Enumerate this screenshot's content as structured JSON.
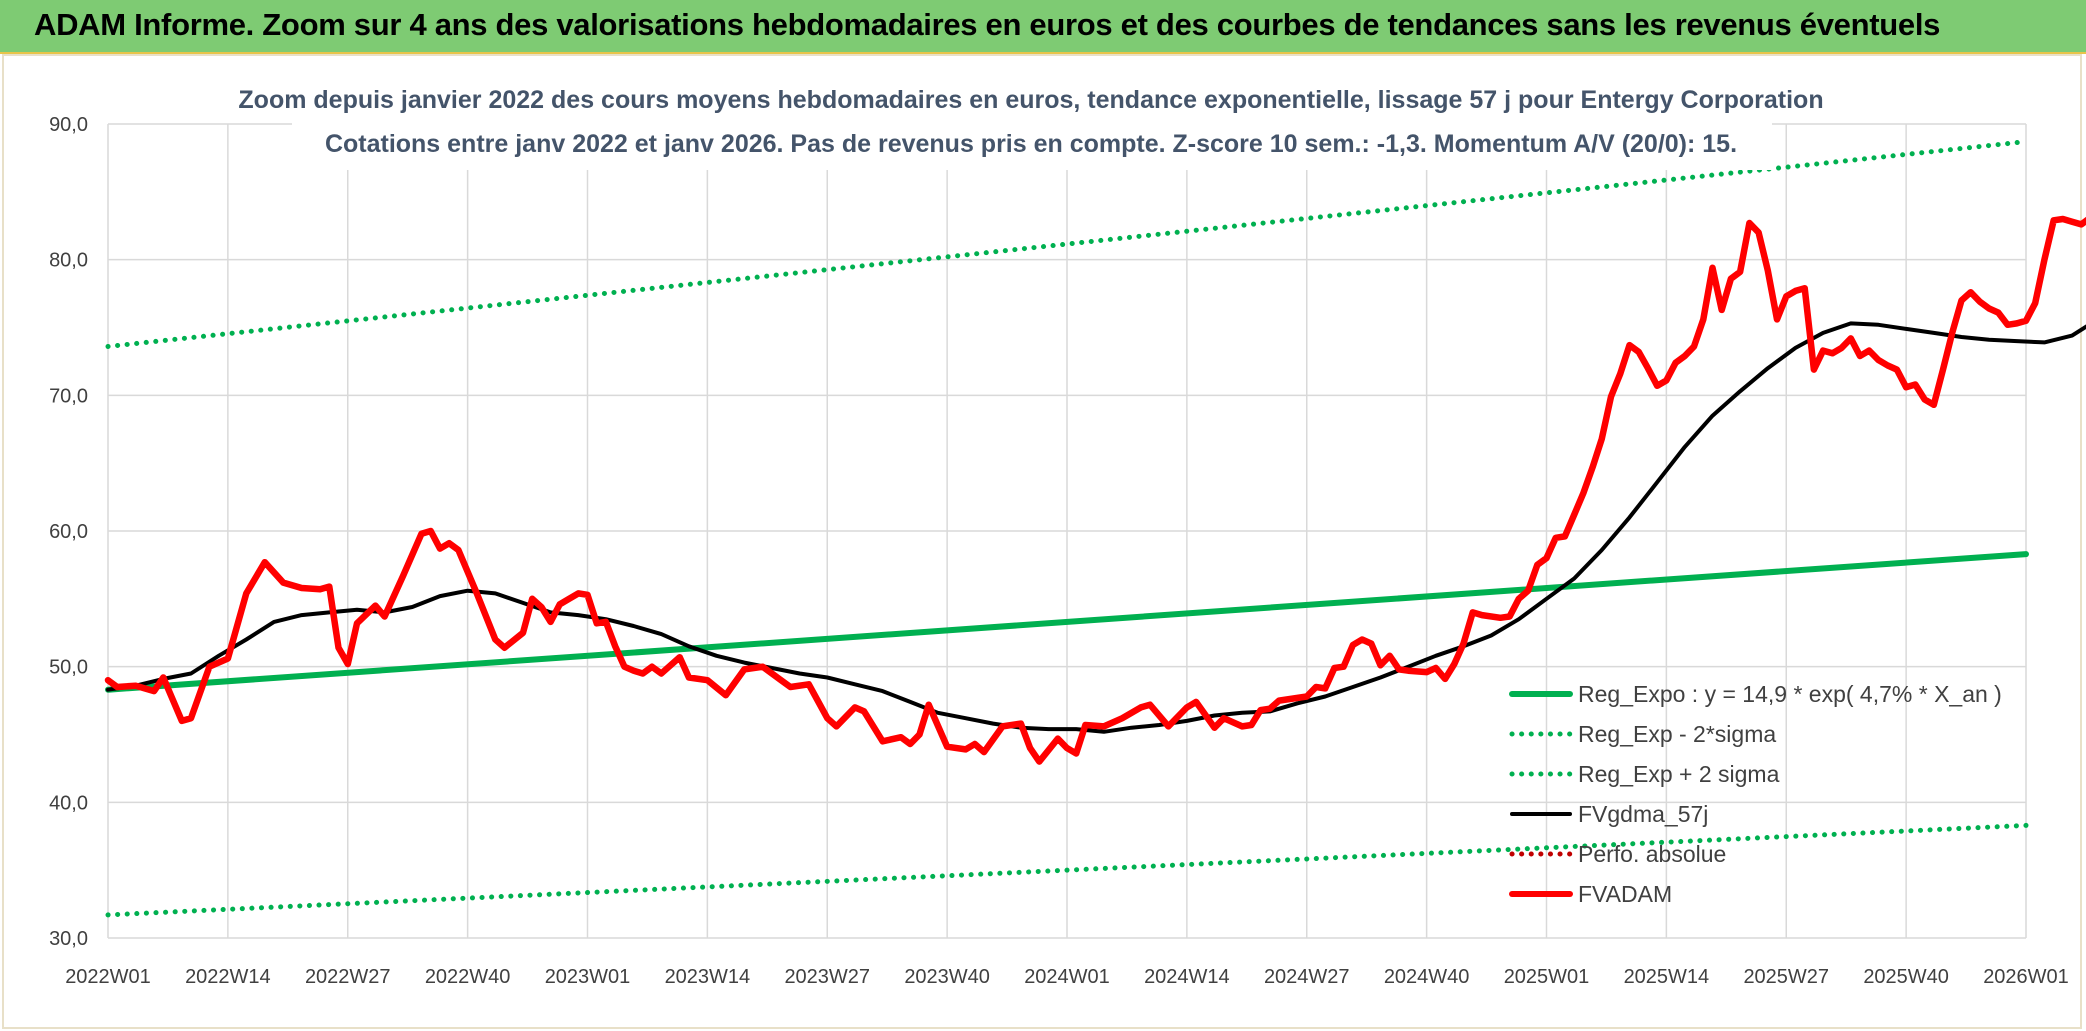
{
  "banner": {
    "title": "ADAM Informe. Zoom sur 4 ans des valorisations hebdomadaires en euros et des courbes de tendances sans les revenus éventuels"
  },
  "colors": {
    "trend": "#00b050",
    "fvgdma": "#000000",
    "fvadam": "#ff0000",
    "perfo": "#c00000"
  },
  "chart_data": {
    "type": "line",
    "title": "Zoom depuis janvier 2022 des cours moyens hebdomadaires en euros, tendance exponentielle, lissage 57 j pour Entergy Corporation",
    "subtitle": "Cotations entre janv 2022 et janv 2026. Pas de revenus pris en compte. Z-score 10 sem.: -1,3. Momentum A/V (20/0): 15.",
    "xlabel": "",
    "ylabel": "",
    "ylim": [
      30,
      90
    ],
    "grid": true,
    "legend_position": "bottom-right",
    "y_ticks": [
      "30,0",
      "40,0",
      "50,0",
      "60,0",
      "70,0",
      "80,0",
      "90,0"
    ],
    "x_ticks": [
      "2022W01",
      "2022W14",
      "2022W27",
      "2022W40",
      "2023W01",
      "2023W14",
      "2023W27",
      "2023W40",
      "2024W01",
      "2024W14",
      "2024W27",
      "2024W40",
      "2025W01",
      "2025W14",
      "2025W27",
      "2025W40",
      "2026W01"
    ],
    "series": [
      {
        "name": "Reg_Expo : y = 14,9 * exp( 4,7% *  X_an )",
        "style": "solid-thick",
        "color": "#00b050",
        "points": [
          [
            0,
            48.3
          ],
          [
            208,
            58.3
          ]
        ]
      },
      {
        "name": "Reg_Exp - 2*sigma",
        "style": "dotted",
        "color": "#00b050",
        "points": [
          [
            0,
            31.7
          ],
          [
            208,
            38.3
          ]
        ]
      },
      {
        "name": "Reg_Exp + 2 sigma",
        "style": "dotted",
        "color": "#00b050",
        "points": [
          [
            0,
            73.6
          ],
          [
            208,
            88.7
          ]
        ]
      },
      {
        "name": "FVgdma_57j",
        "style": "solid",
        "color": "#000000",
        "points": [
          [
            0,
            48.3
          ],
          [
            3,
            48.6
          ],
          [
            6,
            49.1
          ],
          [
            9,
            49.5
          ],
          [
            12,
            50.8
          ],
          [
            15,
            52.0
          ],
          [
            18,
            53.3
          ],
          [
            21,
            53.8
          ],
          [
            24,
            54.0
          ],
          [
            27,
            54.2
          ],
          [
            30,
            54.0
          ],
          [
            33,
            54.4
          ],
          [
            36,
            55.2
          ],
          [
            39,
            55.6
          ],
          [
            42,
            55.4
          ],
          [
            45,
            54.7
          ],
          [
            48,
            54.0
          ],
          [
            51,
            53.8
          ],
          [
            54,
            53.5
          ],
          [
            57,
            53.0
          ],
          [
            60,
            52.4
          ],
          [
            63,
            51.5
          ],
          [
            66,
            50.8
          ],
          [
            69,
            50.3
          ],
          [
            72,
            49.9
          ],
          [
            75,
            49.5
          ],
          [
            78,
            49.2
          ],
          [
            81,
            48.7
          ],
          [
            84,
            48.2
          ],
          [
            87,
            47.4
          ],
          [
            90,
            46.6
          ],
          [
            93,
            46.2
          ],
          [
            96,
            45.8
          ],
          [
            99,
            45.5
          ],
          [
            102,
            45.4
          ],
          [
            105,
            45.4
          ],
          [
            108,
            45.2
          ],
          [
            111,
            45.5
          ],
          [
            114,
            45.7
          ],
          [
            117,
            46.0
          ],
          [
            120,
            46.4
          ],
          [
            123,
            46.6
          ],
          [
            126,
            46.7
          ],
          [
            129,
            47.3
          ],
          [
            132,
            47.8
          ],
          [
            135,
            48.5
          ],
          [
            138,
            49.2
          ],
          [
            141,
            50.0
          ],
          [
            144,
            50.8
          ],
          [
            147,
            51.5
          ],
          [
            150,
            52.3
          ],
          [
            153,
            53.5
          ],
          [
            156,
            55.0
          ],
          [
            159,
            56.5
          ],
          [
            162,
            58.6
          ],
          [
            165,
            61.0
          ],
          [
            168,
            63.6
          ],
          [
            171,
            66.2
          ],
          [
            174,
            68.5
          ],
          [
            177,
            70.3
          ],
          [
            180,
            72.0
          ],
          [
            183,
            73.5
          ],
          [
            186,
            74.6
          ],
          [
            189,
            75.3
          ],
          [
            192,
            75.2
          ],
          [
            195,
            74.9
          ],
          [
            198,
            74.6
          ],
          [
            201,
            74.3
          ],
          [
            204,
            74.1
          ],
          [
            207,
            74.0
          ],
          [
            210,
            73.9
          ],
          [
            213,
            74.4
          ],
          [
            216,
            75.7
          ],
          [
            219,
            76.5
          ],
          [
            222,
            77.3
          ],
          [
            225,
            78.6
          ],
          [
            228,
            79.5
          ],
          [
            231,
            79.9
          ],
          [
            234,
            79.9
          ],
          [
            237,
            79.6
          ],
          [
            239,
            79.4
          ]
        ]
      },
      {
        "name": "Perfo. absolue",
        "style": "dotted",
        "color": "#c00000",
        "points": []
      },
      {
        "name": "FVADAM",
        "style": "solid-thick",
        "color": "#ff0000",
        "points": [
          [
            0,
            49.0
          ],
          [
            1,
            48.5
          ],
          [
            3,
            48.6
          ],
          [
            5,
            48.2
          ],
          [
            6,
            49.2
          ],
          [
            8,
            46.0
          ],
          [
            9,
            46.2
          ],
          [
            11,
            50.0
          ],
          [
            13,
            50.6
          ],
          [
            15,
            55.4
          ],
          [
            17,
            57.7
          ],
          [
            19,
            56.2
          ],
          [
            21,
            55.8
          ],
          [
            23,
            55.7
          ],
          [
            24,
            55.9
          ],
          [
            25,
            51.4
          ],
          [
            26,
            50.2
          ],
          [
            27,
            53.2
          ],
          [
            29,
            54.5
          ],
          [
            30,
            53.7
          ],
          [
            32,
            56.7
          ],
          [
            34,
            59.8
          ],
          [
            35,
            60.0
          ],
          [
            36,
            58.7
          ],
          [
            37,
            59.1
          ],
          [
            38,
            58.6
          ],
          [
            40,
            55.4
          ],
          [
            42,
            52.0
          ],
          [
            43,
            51.4
          ],
          [
            45,
            52.5
          ],
          [
            46,
            55.0
          ],
          [
            47,
            54.4
          ],
          [
            48,
            53.3
          ],
          [
            49,
            54.6
          ],
          [
            50,
            55.0
          ],
          [
            51,
            55.4
          ],
          [
            52,
            55.3
          ],
          [
            53,
            53.2
          ],
          [
            54,
            53.3
          ],
          [
            55,
            51.5
          ],
          [
            56,
            50.0
          ],
          [
            57,
            49.7
          ],
          [
            58,
            49.5
          ],
          [
            59,
            50.0
          ],
          [
            60,
            49.5
          ],
          [
            62,
            50.7
          ],
          [
            63,
            49.2
          ],
          [
            65,
            49.0
          ],
          [
            67,
            47.9
          ],
          [
            69,
            49.8
          ],
          [
            71,
            50.0
          ],
          [
            73,
            49.0
          ],
          [
            74,
            48.5
          ],
          [
            76,
            48.7
          ],
          [
            78,
            46.2
          ],
          [
            79,
            45.6
          ],
          [
            81,
            47.0
          ],
          [
            82,
            46.7
          ],
          [
            84,
            44.5
          ],
          [
            86,
            44.8
          ],
          [
            87,
            44.3
          ],
          [
            88,
            45.0
          ],
          [
            89,
            47.2
          ],
          [
            91,
            44.1
          ],
          [
            93,
            43.9
          ],
          [
            94,
            44.3
          ],
          [
            95,
            43.7
          ],
          [
            97,
            45.6
          ],
          [
            99,
            45.8
          ],
          [
            100,
            44.0
          ],
          [
            101,
            43.0
          ],
          [
            103,
            44.7
          ],
          [
            104,
            44.0
          ],
          [
            105,
            43.6
          ],
          [
            106,
            45.7
          ],
          [
            108,
            45.6
          ],
          [
            110,
            46.2
          ],
          [
            112,
            47.0
          ],
          [
            113,
            47.2
          ],
          [
            115,
            45.6
          ],
          [
            117,
            47.0
          ],
          [
            118,
            47.4
          ],
          [
            120,
            45.5
          ],
          [
            121,
            46.2
          ],
          [
            123,
            45.6
          ],
          [
            124,
            45.7
          ],
          [
            125,
            46.8
          ],
          [
            126,
            46.9
          ],
          [
            127,
            47.5
          ],
          [
            129,
            47.7
          ],
          [
            130,
            47.8
          ],
          [
            131,
            48.5
          ],
          [
            132,
            48.4
          ],
          [
            133,
            49.9
          ],
          [
            134,
            50.0
          ],
          [
            135,
            51.6
          ],
          [
            136,
            52.0
          ],
          [
            137,
            51.7
          ],
          [
            138,
            50.1
          ],
          [
            139,
            50.8
          ],
          [
            140,
            49.8
          ],
          [
            141,
            49.7
          ],
          [
            143,
            49.6
          ],
          [
            144,
            49.9
          ],
          [
            145,
            49.1
          ],
          [
            146,
            50.2
          ],
          [
            147,
            51.7
          ],
          [
            148,
            54.0
          ],
          [
            149,
            53.8
          ],
          [
            151,
            53.6
          ],
          [
            152,
            53.7
          ],
          [
            153,
            55.0
          ],
          [
            154,
            55.6
          ],
          [
            155,
            57.5
          ],
          [
            156,
            58.0
          ],
          [
            157,
            59.5
          ],
          [
            158,
            59.6
          ],
          [
            159,
            61.2
          ],
          [
            160,
            62.8
          ],
          [
            161,
            64.7
          ],
          [
            162,
            66.8
          ],
          [
            163,
            69.9
          ],
          [
            164,
            71.6
          ],
          [
            165,
            73.7
          ],
          [
            166,
            73.2
          ],
          [
            167,
            72.0
          ],
          [
            168,
            70.7
          ],
          [
            169,
            71.1
          ],
          [
            170,
            72.4
          ],
          [
            171,
            72.9
          ],
          [
            172,
            73.6
          ],
          [
            173,
            75.6
          ],
          [
            174,
            79.4
          ],
          [
            175,
            76.3
          ],
          [
            176,
            78.6
          ],
          [
            177,
            79.1
          ],
          [
            178,
            82.7
          ],
          [
            179,
            82.0
          ],
          [
            180,
            79.2
          ],
          [
            181,
            75.6
          ],
          [
            182,
            77.3
          ],
          [
            183,
            77.7
          ],
          [
            184,
            77.9
          ],
          [
            185,
            71.9
          ],
          [
            186,
            73.3
          ],
          [
            187,
            73.1
          ],
          [
            188,
            73.5
          ],
          [
            189,
            74.2
          ],
          [
            190,
            72.9
          ],
          [
            191,
            73.3
          ],
          [
            192,
            72.6
          ],
          [
            193,
            72.2
          ],
          [
            194,
            71.9
          ],
          [
            195,
            70.6
          ],
          [
            196,
            70.8
          ],
          [
            197,
            69.7
          ],
          [
            198,
            69.3
          ],
          [
            199,
            71.9
          ],
          [
            200,
            74.6
          ],
          [
            201,
            77.0
          ],
          [
            202,
            77.6
          ],
          [
            203,
            76.9
          ],
          [
            204,
            76.4
          ],
          [
            205,
            76.1
          ],
          [
            206,
            75.2
          ],
          [
            207,
            75.3
          ],
          [
            208,
            75.5
          ],
          [
            209,
            76.8
          ],
          [
            210,
            80.0
          ],
          [
            211,
            82.9
          ],
          [
            212,
            83.0
          ],
          [
            213,
            82.8
          ],
          [
            214,
            82.6
          ],
          [
            215,
            83.1
          ],
          [
            216,
            82.7
          ],
          [
            217,
            81.7
          ],
          [
            218,
            83.0
          ],
          [
            219,
            80.9
          ],
          [
            220,
            79.4
          ],
          [
            221,
            78.7
          ],
          [
            222,
            78.2
          ],
          [
            223,
            79.3
          ]
        ]
      }
    ]
  }
}
